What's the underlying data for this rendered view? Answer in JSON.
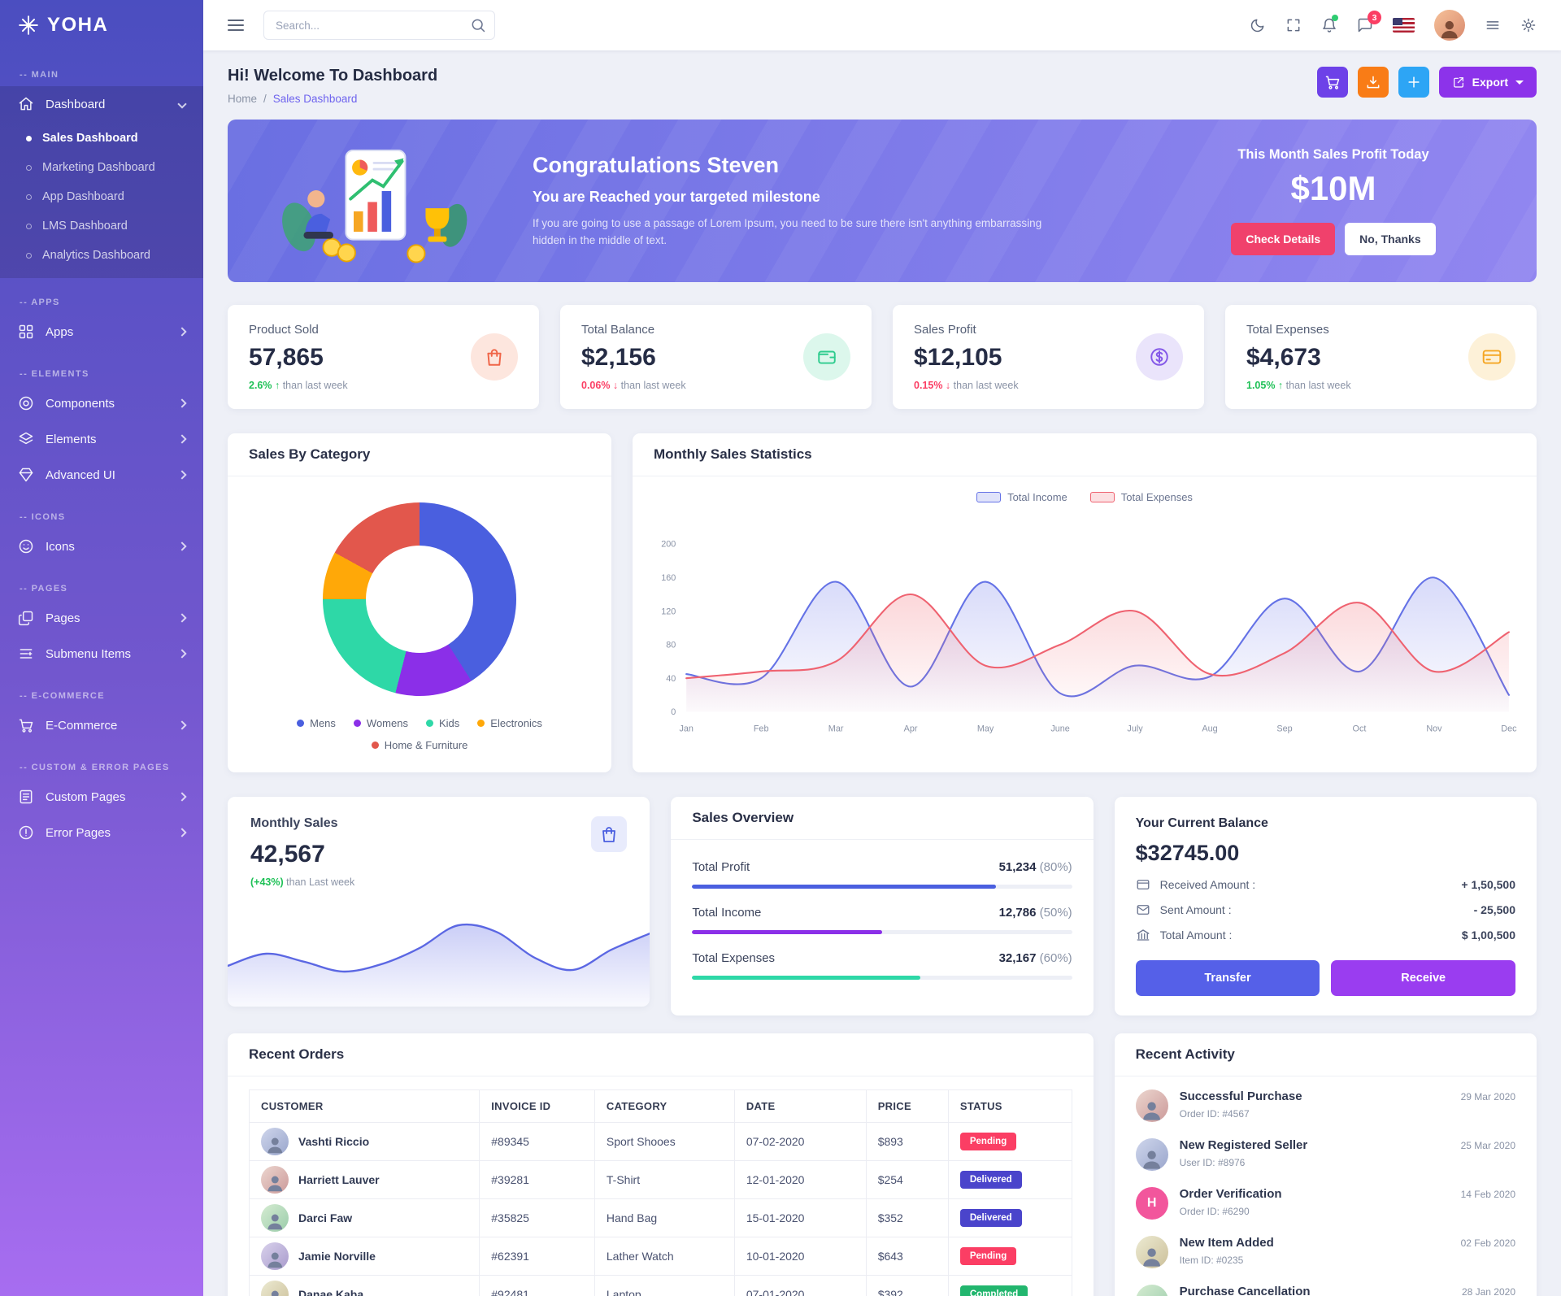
{
  "brand": {
    "name": "YOHA"
  },
  "header": {
    "search_placeholder": "Search...",
    "chat_badge": "3"
  },
  "sidebar": {
    "sections": [
      "MAIN",
      "APPS",
      "ELEMENTS",
      "ICONS",
      "PAGES",
      "E-COMMERCE",
      "CUSTOM & ERROR PAGES"
    ],
    "dashboard": "Dashboard",
    "dashboard_children": [
      "Sales Dashboard",
      "Marketing Dashboard",
      "App Dashboard",
      "LMS Dashboard",
      "Analytics Dashboard"
    ],
    "apps": "Apps",
    "components": "Components",
    "elements": "Elements",
    "advanced_ui": "Advanced UI",
    "icons": "Icons",
    "pages": "Pages",
    "submenu_items": "Submenu Items",
    "ecommerce": "E-Commerce",
    "custom_pages": "Custom Pages",
    "error_pages": "Error Pages"
  },
  "page": {
    "title": "Hi! Welcome To Dashboard",
    "breadcrumb_home": "Home",
    "breadcrumb_sep": "/",
    "breadcrumb_current": "Sales Dashboard",
    "export_label": "Export"
  },
  "banner": {
    "title": "Congratulations Steven",
    "subtitle": "You are Reached your targeted milestone",
    "body": "If you are going to use a passage of Lorem Ipsum, you need to be sure there isn't anything embarrassing hidden in the middle of text.",
    "profit_label": "This Month Sales Profit Today",
    "profit_value": "$10M",
    "check_btn": "Check Details",
    "no_btn": "No, Thanks"
  },
  "stats": [
    {
      "label": "Product Sold",
      "value": "57,865",
      "change": "2.6% ↑",
      "trend": "up",
      "suffix": "than last week"
    },
    {
      "label": "Total Balance",
      "value": "$2,156",
      "change": "0.06% ↓",
      "trend": "down",
      "suffix": "than last week"
    },
    {
      "label": "Sales Profit",
      "value": "$12,105",
      "change": "0.15% ↓",
      "trend": "down",
      "suffix": "than last week"
    },
    {
      "label": "Total Expenses",
      "value": "$4,673",
      "change": "1.05% ↑",
      "trend": "up",
      "suffix": "than last week"
    }
  ],
  "category_card": {
    "title": "Sales By Category"
  },
  "statistics_card": {
    "title": "Monthly Sales Statistics"
  },
  "monthly_sales": {
    "label": "Monthly Sales",
    "value": "42,567",
    "change": "(+43%)",
    "suffix": "than Last week"
  },
  "sales_overview": {
    "title": "Sales Overview",
    "rows": [
      {
        "label": "Total Profit",
        "value": "51,234",
        "percent": "(80%)",
        "pct": 80,
        "color": "#4a5fdf"
      },
      {
        "label": "Total Income",
        "value": "12,786",
        "percent": "(50%)",
        "pct": 50,
        "color": "#8b2fe8"
      },
      {
        "label": "Total Expenses",
        "value": "32,167",
        "percent": "(60%)",
        "pct": 60,
        "color": "#2ed8a7"
      }
    ]
  },
  "balance": {
    "title": "Your Current Balance",
    "value": "$32745.00",
    "rows": [
      {
        "label": "Received Amount :",
        "value": "+ 1,50,500"
      },
      {
        "label": "Sent Amount :",
        "value": "- 25,500"
      },
      {
        "label": "Total Amount :",
        "value": "$ 1,00,500"
      }
    ],
    "transfer_btn": "Transfer",
    "receive_btn": "Receive"
  },
  "orders": {
    "title": "Recent Orders",
    "columns": [
      "CUSTOMER",
      "INVOICE ID",
      "CATEGORY",
      "DATE",
      "PRICE",
      "STATUS"
    ],
    "rows": [
      {
        "customer": "Vashti Riccio",
        "invoice": "#89345",
        "category": "Sport Shooes",
        "date": "07-02-2020",
        "price": "$893",
        "status": "Pending"
      },
      {
        "customer": "Harriett Lauver",
        "invoice": "#39281",
        "category": "T-Shirt",
        "date": "12-01-2020",
        "price": "$254",
        "status": "Delivered"
      },
      {
        "customer": "Darci Faw",
        "invoice": "#35825",
        "category": "Hand Bag",
        "date": "15-01-2020",
        "price": "$352",
        "status": "Delivered"
      },
      {
        "customer": "Jamie Norville",
        "invoice": "#62391",
        "category": "Lather Watch",
        "date": "10-01-2020",
        "price": "$643",
        "status": "Pending"
      },
      {
        "customer": "Danae Kaba",
        "invoice": "#92481",
        "category": "Laptop",
        "date": "07-01-2020",
        "price": "$392",
        "status": "Completed"
      }
    ]
  },
  "activity": {
    "title": "Recent Activity",
    "items": [
      {
        "title": "Successful Purchase",
        "sub": "Order ID: #4567",
        "date": "29 Mar 2020",
        "initial": ""
      },
      {
        "title": "New Registered Seller",
        "sub": "User ID: #8976",
        "date": "25 Mar 2020",
        "initial": ""
      },
      {
        "title": "Order Verification",
        "sub": "Order ID: #6290",
        "date": "14 Feb 2020",
        "initial": "H"
      },
      {
        "title": "New Item Added",
        "sub": "Item ID: #0235",
        "date": "02 Feb 2020",
        "initial": ""
      },
      {
        "title": "Purchase Cancellation",
        "sub": "",
        "date": "28 Jan 2020",
        "initial": ""
      }
    ]
  },
  "chart_data": [
    {
      "type": "pie",
      "donut": true,
      "title": "Sales By Category",
      "labels": [
        "Mens",
        "Womens",
        "Kids",
        "Electronics",
        "Home & Furniture"
      ],
      "values": [
        41,
        13,
        21,
        8,
        17
      ],
      "colors": [
        "#4a5fdf",
        "#8b2fe8",
        "#2ed8a7",
        "#ffa808",
        "#e2574c"
      ],
      "legend_position": "bottom"
    },
    {
      "type": "line",
      "title": "Monthly Sales Statistics",
      "x": [
        "Jan",
        "Feb",
        "Mar",
        "Apr",
        "May",
        "June",
        "July",
        "Aug",
        "Sep",
        "Oct",
        "Nov",
        "Dec"
      ],
      "series": [
        {
          "name": "Total Income",
          "color": "#6472e6",
          "values": [
            45,
            40,
            155,
            30,
            155,
            22,
            55,
            42,
            135,
            48,
            160,
            20
          ]
        },
        {
          "name": "Total Expenses",
          "color": "#ef6270",
          "values": [
            40,
            48,
            60,
            140,
            55,
            80,
            120,
            45,
            70,
            130,
            48,
            95
          ]
        }
      ],
      "ylim": [
        0,
        200
      ],
      "yticks": [
        0,
        40,
        80,
        120,
        160,
        200
      ],
      "legend_position": "top",
      "grid": false
    },
    {
      "type": "area",
      "title": "Monthly Sales",
      "values": [
        40,
        55,
        45,
        33,
        42,
        62,
        90,
        82,
        50,
        35,
        60,
        80
      ],
      "color": "#5b67e3"
    }
  ]
}
